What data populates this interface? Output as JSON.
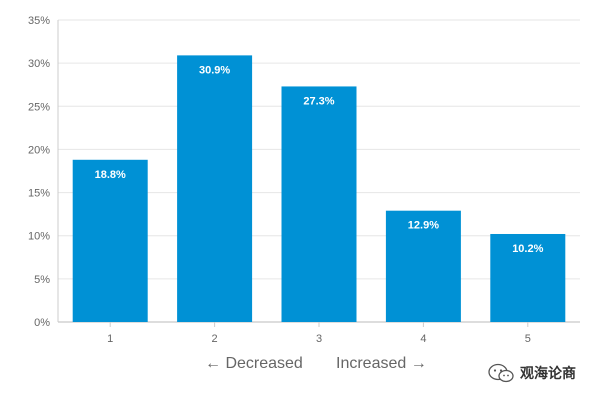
{
  "chart_data": {
    "type": "bar",
    "categories": [
      "1",
      "2",
      "3",
      "4",
      "5"
    ],
    "values": [
      18.8,
      30.9,
      27.3,
      12.9,
      10.2
    ],
    "data_labels": [
      "18.8%",
      "30.9%",
      "27.3%",
      "12.9%",
      "10.2%"
    ],
    "ylim": [
      0,
      35
    ],
    "yticks": [
      0,
      5,
      10,
      15,
      20,
      25,
      30,
      35
    ],
    "ytick_labels": [
      "0%",
      "5%",
      "10%",
      "15%",
      "20%",
      "25%",
      "30%",
      "35%"
    ],
    "grid": true,
    "bar_color": "#0091D5",
    "title": "",
    "xlabel": "",
    "ylabel": "",
    "annotations": [
      "← Decreased",
      "Increased →"
    ]
  },
  "watermark": {
    "text": "观海论商",
    "icon": "wechat-icon"
  }
}
